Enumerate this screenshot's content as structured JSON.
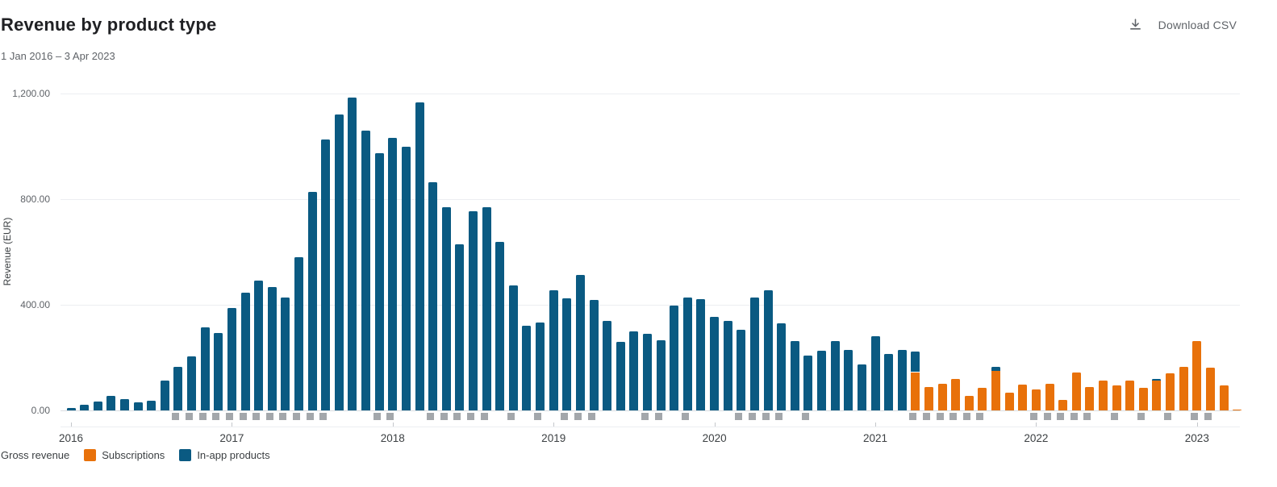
{
  "header": {
    "title": "Revenue by product type",
    "subtitle": "1 Jan 2016 – 3 Apr 2023",
    "download_label": "Download CSV"
  },
  "legend": {
    "gross_revenue_label": "Gross revenue",
    "items": [
      {
        "label": "Subscriptions",
        "color": "#e8710a"
      },
      {
        "label": "In-app products",
        "color": "#0a5a82"
      }
    ]
  },
  "chart_data": {
    "type": "bar",
    "stacked": true,
    "title": "Revenue by product type",
    "ylabel": "Revenue (EUR)",
    "grid": true,
    "legend_position": "bottom",
    "ylim": [
      0,
      1200
    ],
    "y_tick_values": [
      0,
      400,
      800,
      1200
    ],
    "y_tick_labels": [
      "0.00",
      "400.00",
      "800.00",
      "1,200.00"
    ],
    "x_year_labels": [
      "2016",
      "2017",
      "2018",
      "2019",
      "2020",
      "2021",
      "2022",
      "2023"
    ],
    "categories": [
      "Jan 2016",
      "Feb 2016",
      "Mar 2016",
      "Apr 2016",
      "May 2016",
      "Jun 2016",
      "Jul 2016",
      "Aug 2016",
      "Sep 2016",
      "Oct 2016",
      "Nov 2016",
      "Dec 2016",
      "Jan 2017",
      "Feb 2017",
      "Mar 2017",
      "Apr 2017",
      "May 2017",
      "Jun 2017",
      "Jul 2017",
      "Aug 2017",
      "Sep 2017",
      "Oct 2017",
      "Nov 2017",
      "Dec 2017",
      "Jan 2018",
      "Feb 2018",
      "Mar 2018",
      "Apr 2018",
      "May 2018",
      "Jun 2018",
      "Jul 2018",
      "Aug 2018",
      "Sep 2018",
      "Oct 2018",
      "Nov 2018",
      "Dec 2018",
      "Jan 2019",
      "Feb 2019",
      "Mar 2019",
      "Apr 2019",
      "May 2019",
      "Jun 2019",
      "Jul 2019",
      "Aug 2019",
      "Sep 2019",
      "Oct 2019",
      "Nov 2019",
      "Dec 2019",
      "Jan 2020",
      "Feb 2020",
      "Mar 2020",
      "Apr 2020",
      "May 2020",
      "Jun 2020",
      "Jul 2020",
      "Aug 2020",
      "Sep 2020",
      "Oct 2020",
      "Nov 2020",
      "Dec 2020",
      "Jan 2021",
      "Feb 2021",
      "Mar 2021",
      "Apr 2021",
      "May 2021",
      "Jun 2021",
      "Jul 2021",
      "Aug 2021",
      "Sep 2021",
      "Oct 2021",
      "Nov 2021",
      "Dec 2021",
      "Jan 2022",
      "Feb 2022",
      "Mar 2022",
      "Apr 2022",
      "May 2022",
      "Jun 2022",
      "Jul 2022",
      "Aug 2022",
      "Sep 2022",
      "Oct 2022",
      "Nov 2022",
      "Dec 2022",
      "Jan 2023",
      "Feb 2023",
      "Mar 2023",
      "Apr 2023"
    ],
    "series": [
      {
        "name": "Subscriptions",
        "color": "#e8710a",
        "values": [
          0,
          0,
          0,
          0,
          0,
          0,
          0,
          0,
          0,
          0,
          0,
          0,
          0,
          0,
          0,
          0,
          0,
          0,
          0,
          0,
          0,
          0,
          0,
          0,
          0,
          0,
          0,
          0,
          0,
          0,
          0,
          0,
          0,
          0,
          0,
          0,
          0,
          0,
          0,
          0,
          0,
          0,
          0,
          0,
          0,
          0,
          0,
          0,
          0,
          0,
          0,
          0,
          0,
          0,
          0,
          0,
          0,
          0,
          0,
          0,
          0,
          0,
          0,
          145,
          90,
          100,
          119,
          54,
          84,
          149,
          66,
          98,
          79,
          101,
          41,
          142,
          89,
          112,
          96,
          114,
          86,
          112,
          139,
          164,
          264,
          162,
          94,
          4
        ]
      },
      {
        "name": "In-app products",
        "color": "#0a5a82",
        "values": [
          8,
          21,
          34,
          56,
          44,
          32,
          37,
          113,
          166,
          206,
          313,
          293,
          389,
          445,
          491,
          466,
          427,
          581,
          829,
          1025,
          1122,
          1185,
          1061,
          973,
          1032,
          1000,
          1165,
          863,
          770,
          629,
          753,
          768,
          638,
          474,
          320,
          333,
          455,
          423,
          513,
          419,
          338,
          261,
          300,
          291,
          265,
          396,
          428,
          421,
          353,
          338,
          305,
          426,
          455,
          330,
          264,
          208,
          226,
          264,
          230,
          173,
          282,
          213,
          230,
          77,
          0,
          0,
          0,
          0,
          0,
          16,
          0,
          0,
          0,
          0,
          0,
          0,
          0,
          0,
          0,
          0,
          0,
          7,
          0,
          0,
          0,
          0,
          0,
          0
        ]
      }
    ],
    "note_markers": {
      "description": "gray squares under x-axis",
      "month_indices": [
        8,
        9,
        10,
        11,
        12,
        13,
        14,
        15,
        16,
        17,
        18,
        19,
        23,
        24,
        27,
        28,
        29,
        30,
        31,
        33,
        35,
        37,
        38,
        39,
        43,
        44,
        46,
        50,
        51,
        52,
        53,
        55,
        63,
        64,
        65,
        66,
        67,
        68,
        72,
        73,
        74,
        75,
        76,
        78,
        80,
        82,
        84,
        85
      ]
    }
  }
}
